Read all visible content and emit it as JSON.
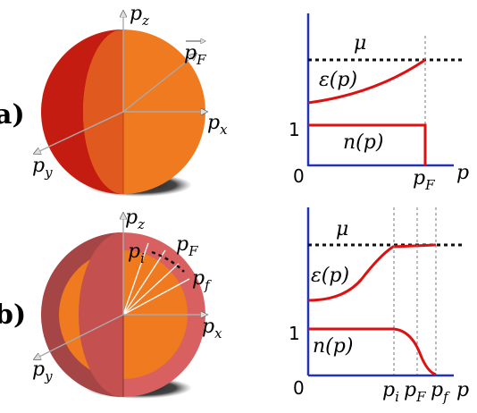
{
  "panel_a": {
    "letter": "a)",
    "sphere": {
      "axes": {
        "pz": "p",
        "pz_sub": "z",
        "px": "p",
        "px_sub": "x",
        "py": "p",
        "py_sub": "y"
      },
      "vector": {
        "label": "p",
        "label_sub": "F"
      },
      "colors": {
        "shell_dark": "#c41c10",
        "cut_face": "#e05a20",
        "outer": "#f07a20",
        "shadow": "#3a3a3a"
      }
    },
    "plots": {
      "energy": {
        "mu": "μ",
        "curve": "ε(p)"
      },
      "occupation": {
        "one": "1",
        "curve": "n(p)"
      },
      "axis": {
        "zero": "0",
        "p": "p",
        "pF": "p",
        "pF_sub": "F"
      }
    }
  },
  "panel_b": {
    "letter": "b)",
    "sphere": {
      "axes": {
        "pz": "p",
        "pz_sub": "z",
        "px": "p",
        "px_sub": "x",
        "py": "p",
        "py_sub": "y"
      },
      "labels": {
        "pi": "p",
        "pi_sub": "i",
        "pF": "p",
        "pF_sub": "F",
        "pf": "p",
        "pf_sub": "f"
      },
      "colors": {
        "shell": "#b84a4a",
        "shell_light": "#d86060",
        "cut_face": "#e05a20",
        "outer": "#f07a20"
      }
    },
    "plots": {
      "energy": {
        "mu": "μ",
        "curve": "ε(p)"
      },
      "occupation": {
        "one": "1",
        "curve": "n(p)"
      },
      "axis": {
        "zero": "0",
        "p": "p",
        "pi": "p",
        "pi_sub": "i",
        "pF": "p",
        "pF_sub": "F",
        "pf": "p",
        "pf_sub": "f"
      }
    }
  },
  "colors": {
    "axis_blue": "#2233bb",
    "curve_red": "#dd1111",
    "grid": "#777777"
  }
}
